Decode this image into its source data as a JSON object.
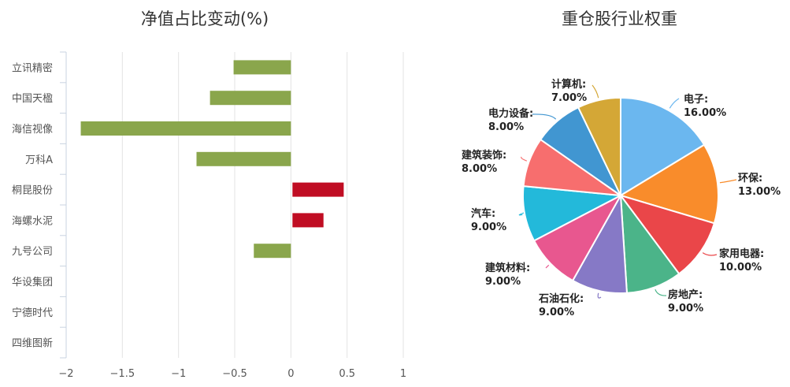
{
  "chart_data": [
    {
      "type": "bar",
      "orientation": "horizontal",
      "title": "净值占比变动(%)",
      "categories": [
        "立讯精密",
        "中国天楹",
        "海信视像",
        "万科A",
        "桐昆股份",
        "海螺水泥",
        "九号公司",
        "华设集团",
        "宁德时代",
        "四维图新"
      ],
      "values": [
        -0.51,
        -0.72,
        -1.87,
        -0.84,
        0.47,
        0.29,
        -0.33,
        0,
        0,
        0
      ],
      "xlabel": "",
      "ylabel": "",
      "xlim": [
        -2,
        1
      ],
      "xticks": [
        "-2",
        "-1.5",
        "-1",
        "-0.5",
        "0",
        "0.5",
        "1"
      ],
      "xtick_values": [
        -2,
        -1.5,
        -1,
        -0.5,
        0,
        0.5,
        1
      ],
      "grid": true,
      "colors": {
        "negative": "#8aa64c",
        "positive": "#c00d23"
      }
    },
    {
      "type": "pie",
      "title": "重仓股行业权重",
      "labels": [
        "电子",
        "环保",
        "家用电器",
        "房地产",
        "石油石化",
        "建筑材料",
        "汽车",
        "建筑装饰",
        "电力设备",
        "计算机"
      ],
      "values": [
        16,
        13,
        10,
        9,
        9,
        9,
        9,
        8,
        8,
        7
      ],
      "value_labels": [
        "16.00%",
        "13.00%",
        "10.00%",
        "9.00%",
        "9.00%",
        "9.00%",
        "9.00%",
        "8.00%",
        "8.00%",
        "7.00%"
      ],
      "colors": [
        "#6bb7ef",
        "#f98c2b",
        "#ea4649",
        "#4bb489",
        "#8679c6",
        "#e8578f",
        "#23b9da",
        "#f76e6e",
        "#4196d1",
        "#d4a736"
      ],
      "start_angle": "12 o'clock",
      "direction": "clockwise",
      "legend": "none"
    }
  ]
}
